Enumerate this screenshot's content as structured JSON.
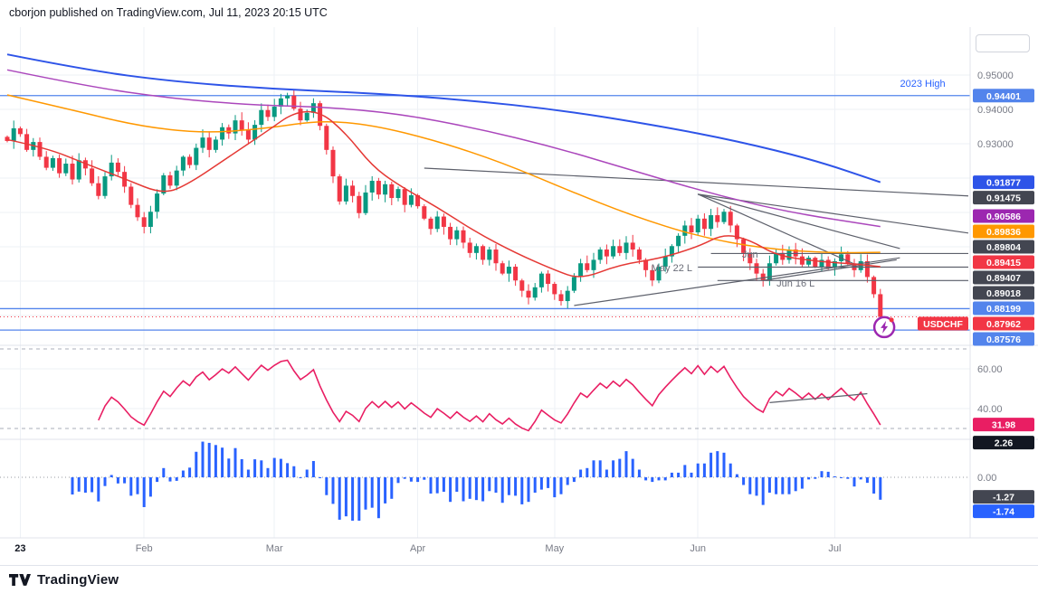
{
  "header": {
    "publish_line": "cborjon published on TradingView.com, Jul 11, 2023 20:15 UTC"
  },
  "footer": {
    "brand": "TradingView"
  },
  "symbol": "USDCHF",
  "colors": {
    "up": "#089981",
    "down": "#f23645",
    "grid": "#eef1f6",
    "axis_text": "#787b86",
    "separator": "#e0e3eb",
    "drawing": "#5d606b",
    "band_dash": "#a8adb8",
    "current_line": "#f23645"
  },
  "chart_data": {
    "type": "candlestick",
    "symbol": "USDCHF",
    "timeframe_visible": "Jan 2023 - Jul 11 2023, daily",
    "ylim": [
      0.872,
      0.956
    ],
    "closes": [
      0.9308,
      0.9345,
      0.9328,
      0.9282,
      0.9305,
      0.9262,
      0.923,
      0.9258,
      0.9214,
      0.9242,
      0.9196,
      0.9252,
      0.9228,
      0.9185,
      0.9148,
      0.9205,
      0.9245,
      0.9218,
      0.9175,
      0.9122,
      0.9086,
      0.9058,
      0.9102,
      0.9155,
      0.9208,
      0.9178,
      0.9222,
      0.9262,
      0.9238,
      0.9288,
      0.9318,
      0.9282,
      0.9312,
      0.9348,
      0.933,
      0.9368,
      0.934,
      0.9312,
      0.9355,
      0.9398,
      0.9378,
      0.9408,
      0.9432,
      0.944,
      0.9402,
      0.9368,
      0.939,
      0.9418,
      0.9352,
      0.9282,
      0.9205,
      0.9132,
      0.9178,
      0.9148,
      0.9098,
      0.9158,
      0.9192,
      0.9152,
      0.9182,
      0.9142,
      0.9168,
      0.9122,
      0.915,
      0.9118,
      0.9082,
      0.9052,
      0.9088,
      0.9058,
      0.9022,
      0.9048,
      0.9012,
      0.8982,
      0.9002,
      0.8962,
      0.8992,
      0.8952,
      0.8922,
      0.8942,
      0.8902,
      0.8872,
      0.8852,
      0.8882,
      0.8922,
      0.8892,
      0.8862,
      0.8842,
      0.8872,
      0.8912,
      0.8952,
      0.8932,
      0.8962,
      0.8992,
      0.8972,
      0.9002,
      0.8982,
      0.9012,
      0.8992,
      0.8962,
      0.8932,
      0.8902,
      0.8942,
      0.8972,
      0.9002,
      0.9032,
      0.9062,
      0.9042,
      0.9082,
      0.9052,
      0.9092,
      0.9072,
      0.9102,
      0.9062,
      0.9022,
      0.8982,
      0.8952,
      0.8922,
      0.8902,
      0.8952,
      0.8982,
      0.8962,
      0.8992,
      0.8972,
      0.8948,
      0.8968,
      0.8942,
      0.8962,
      0.8938,
      0.8958,
      0.8978,
      0.8952,
      0.8932,
      0.8958,
      0.8912,
      0.8862,
      0.8796
    ],
    "ma_lines": [
      {
        "name": "ma-slow-blue",
        "color": "#2e54e8",
        "width": 2,
        "last_value": 0.91877,
        "points": [
          [
            0,
            0.956
          ],
          [
            12,
            0.9515
          ],
          [
            25,
            0.9482
          ],
          [
            40,
            0.946
          ],
          [
            55,
            0.9448
          ],
          [
            70,
            0.9428
          ],
          [
            85,
            0.9398
          ],
          [
            100,
            0.9352
          ],
          [
            112,
            0.9308
          ],
          [
            124,
            0.9252
          ],
          [
            134,
            0.9188
          ]
        ]
      },
      {
        "name": "ma-purple",
        "color": "#ab47bc",
        "width": 1.5,
        "last_value": 0.90586,
        "points": [
          [
            0,
            0.9515
          ],
          [
            12,
            0.9468
          ],
          [
            25,
            0.9432
          ],
          [
            38,
            0.9412
          ],
          [
            48,
            0.9408
          ],
          [
            60,
            0.9388
          ],
          [
            72,
            0.9345
          ],
          [
            84,
            0.929
          ],
          [
            96,
            0.9222
          ],
          [
            108,
            0.9155
          ],
          [
            120,
            0.91
          ],
          [
            134,
            0.9059
          ]
        ]
      },
      {
        "name": "ma-orange",
        "color": "#ff9800",
        "width": 1.5,
        "last_value": 0.89836,
        "points": [
          [
            0,
            0.9442
          ],
          [
            10,
            0.9398
          ],
          [
            20,
            0.9352
          ],
          [
            30,
            0.933
          ],
          [
            40,
            0.9345
          ],
          [
            48,
            0.9368
          ],
          [
            56,
            0.9355
          ],
          [
            66,
            0.9308
          ],
          [
            76,
            0.9245
          ],
          [
            86,
            0.9165
          ],
          [
            96,
            0.909
          ],
          [
            106,
            0.903
          ],
          [
            116,
            0.8995
          ],
          [
            126,
            0.8982
          ],
          [
            134,
            0.8984
          ]
        ]
      },
      {
        "name": "ma-red",
        "color": "#e53935",
        "width": 1.5,
        "last_value": 0.89415,
        "points": [
          [
            0,
            0.9312
          ],
          [
            6,
            0.9288
          ],
          [
            12,
            0.9242
          ],
          [
            18,
            0.9198
          ],
          [
            24,
            0.9152
          ],
          [
            28,
            0.9185
          ],
          [
            34,
            0.9262
          ],
          [
            40,
            0.9338
          ],
          [
            44,
            0.9392
          ],
          [
            48,
            0.9395
          ],
          [
            52,
            0.933
          ],
          [
            56,
            0.9235
          ],
          [
            60,
            0.918
          ],
          [
            66,
            0.9115
          ],
          [
            72,
            0.9042
          ],
          [
            78,
            0.8982
          ],
          [
            84,
            0.8932
          ],
          [
            88,
            0.8905
          ],
          [
            94,
            0.8948
          ],
          [
            100,
            0.8965
          ],
          [
            106,
            0.9
          ],
          [
            110,
            0.9038
          ],
          [
            114,
            0.902
          ],
          [
            118,
            0.8975
          ],
          [
            124,
            0.8958
          ],
          [
            130,
            0.895
          ],
          [
            134,
            0.8942
          ]
        ]
      }
    ],
    "levels": [
      {
        "price": 0.94401,
        "label": "2023 High",
        "color": "#5384ec"
      },
      {
        "price": 0.88199,
        "label": "",
        "color": "#5384ec"
      },
      {
        "price": 0.87576,
        "label": "",
        "color": "#5384ec"
      }
    ],
    "current_price": 0.87962,
    "trendlines": [
      [
        64,
        0.9229,
        147.5,
        0.9148
      ],
      [
        106,
        0.9153,
        147.5,
        0.904
      ],
      [
        106,
        0.9153,
        137,
        0.8995
      ],
      [
        106,
        0.9153,
        130,
        0.895
      ],
      [
        87,
        0.8829,
        137,
        0.8968
      ],
      [
        116,
        0.8902,
        136.5,
        0.8962
      ],
      [
        108,
        0.89804,
        147.5,
        0.89804
      ],
      [
        106,
        0.89407,
        147.5,
        0.89407
      ],
      [
        109,
        0.89018,
        147.5,
        0.89018
      ]
    ],
    "annotations": [
      {
        "text": "2023 High",
        "day": 140.5,
        "price": 0.9466,
        "color": "#2962ff"
      },
      {
        "text": "May 22 L",
        "day": 102,
        "price": 0.8929,
        "color": "#6a6d78"
      },
      {
        "text": "Jun",
        "day": 114,
        "price": 0.8968,
        "color": "#6a6d78"
      },
      {
        "text": "Jun 16 L",
        "day": 121,
        "price": 0.8884,
        "color": "#6a6d78"
      }
    ],
    "price_grid": [
      0.95,
      0.94,
      0.93,
      0.92,
      0.91,
      0.9,
      0.89,
      0.88
    ],
    "y_ticks": [
      {
        "value": 0.95,
        "label": "0.95000"
      },
      {
        "value": 0.94,
        "label": "0.94000"
      },
      {
        "value": 0.93,
        "label": "0.93000"
      }
    ],
    "x_ticks": [
      {
        "day": 2,
        "label": "23",
        "year": true
      },
      {
        "day": 21,
        "label": "Feb"
      },
      {
        "day": 41,
        "label": "Mar"
      },
      {
        "day": 63,
        "label": "Apr"
      },
      {
        "day": 84,
        "label": "May"
      },
      {
        "day": 106,
        "label": "Jun"
      },
      {
        "day": 127,
        "label": "Jul"
      }
    ],
    "price_badges": [
      {
        "text": "0.94401",
        "price": 0.94401,
        "bg": "#5384ec"
      },
      {
        "text": "0.91877",
        "price": 0.91877,
        "bg": "#2e54e8"
      },
      {
        "text": "0.91475",
        "price": 0.91475,
        "bg": "#434651"
      },
      {
        "text": "0.90586",
        "price": 0.90586,
        "bg": "#9c27b0"
      },
      {
        "text": "0.89836",
        "price": 0.89836,
        "bg": "#ff9800"
      },
      {
        "text": "0.89804",
        "price": 0.89804,
        "bg": "#434651"
      },
      {
        "text": "0.89415",
        "price": 0.89415,
        "bg": "#f23645"
      },
      {
        "text": "0.89407",
        "price": 0.89407,
        "bg": "#434651"
      },
      {
        "text": "0.89018",
        "price": 0.89018,
        "bg": "#434651"
      },
      {
        "text": "0.88199",
        "price": 0.88199,
        "bg": "#5384ec"
      },
      {
        "text": "0.87962",
        "price": 0.87962,
        "bg": "#f23645",
        "symbol_tag": "USDCHF"
      },
      {
        "text": "0.87576",
        "price": 0.87576,
        "bg": "#5384ec"
      }
    ],
    "rsi": {
      "period": 14,
      "color": "#e91e63",
      "bands": [
        70,
        30
      ],
      "grid": [
        60,
        40
      ],
      "ticks": [
        {
          "value": 60,
          "label": "60.00"
        },
        {
          "value": 40,
          "label": "40.00"
        }
      ],
      "last_value": 31.98,
      "badge": {
        "text": "31.98",
        "bg": "#e91e63"
      },
      "trendline": [
        117,
        43,
        132,
        47.5
      ]
    },
    "momentum": {
      "period": 10,
      "color": "#2962ff",
      "ticks": [
        {
          "value": 0,
          "label": "0.00"
        }
      ],
      "badges": [
        {
          "text": "2.26",
          "value": 2.26,
          "bg": "#131722"
        },
        {
          "text": "-1.27",
          "value": -1.27,
          "bg": "#434651"
        },
        {
          "text": "-1.74",
          "value": -1.74,
          "bg": "#2962ff"
        }
      ]
    },
    "idea_icon": {
      "day": 134.6,
      "price": 0.8766,
      "color": "#9c27b0"
    }
  }
}
